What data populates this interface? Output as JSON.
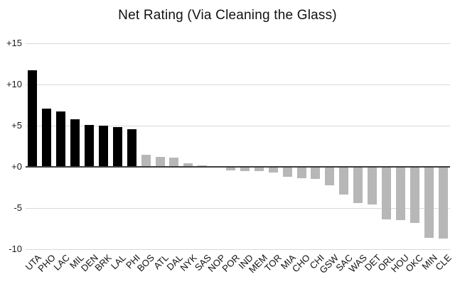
{
  "chart_data": {
    "type": "bar",
    "title": "Net Rating (Via Cleaning the Glass)",
    "categories": [
      "UTA",
      "PHO",
      "LAC",
      "MIL",
      "DEN",
      "BRK",
      "LAL",
      "PHI",
      "BOS",
      "ATL",
      "DAL",
      "NYK",
      "SAS",
      "NOP",
      "POR",
      "IND",
      "MEM",
      "TOR",
      "MIA",
      "CHO",
      "CHI",
      "GSW",
      "SAC",
      "WAS",
      "DET",
      "ORL",
      "HOU",
      "OKC",
      "MIN",
      "CLE"
    ],
    "values": [
      11.7,
      7.1,
      6.7,
      5.8,
      5.1,
      5.0,
      4.8,
      4.6,
      1.5,
      1.2,
      1.1,
      0.4,
      0.2,
      -0.1,
      -0.4,
      -0.5,
      -0.5,
      -0.7,
      -1.2,
      -1.4,
      -1.5,
      -2.2,
      -3.4,
      -4.4,
      -4.6,
      -6.4,
      -6.5,
      -6.8,
      -8.6,
      -8.7
    ],
    "xlabel": "",
    "ylabel": "",
    "ylim": [
      -10,
      15
    ],
    "ytick_labels": [
      "+15",
      "+10",
      "+5",
      "+0",
      "-5",
      "-10"
    ],
    "ytick_values": [
      15,
      10,
      5,
      0,
      -5,
      -10
    ],
    "grid": true,
    "legend_position": "none",
    "highlight_first_n": 8,
    "colors": {
      "highlight_bar": "#000000",
      "default_bar": "#b7b7b7",
      "gridline": "#d9d9d9",
      "zero_axis": "#3c3c3c",
      "text": "#111111",
      "background": "#ffffff"
    }
  }
}
